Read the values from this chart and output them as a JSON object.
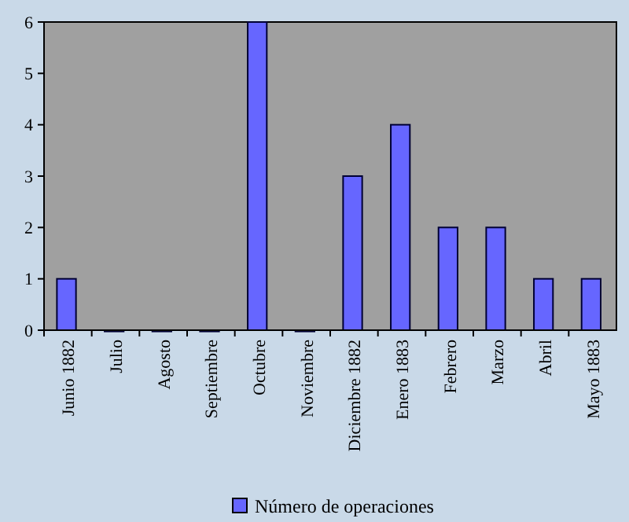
{
  "chart_data": {
    "type": "bar",
    "categories": [
      "Junio 1882",
      "Julio",
      "Agosto",
      "Septiembre",
      "Octubre",
      "Noviembre",
      "Diciembre 1882",
      "Enero 1883",
      "Febrero",
      "Marzo",
      "Abril",
      "Mayo 1883"
    ],
    "series": [
      {
        "name": "Número de operaciones",
        "color": "#6666ff",
        "values": [
          1,
          0,
          0,
          0,
          6,
          0,
          3,
          4,
          2,
          2,
          1,
          1
        ]
      }
    ],
    "ylim": [
      0,
      6
    ],
    "yticks": [
      0,
      1,
      2,
      3,
      4,
      5,
      6
    ],
    "grid": false,
    "legend": "bottom"
  }
}
